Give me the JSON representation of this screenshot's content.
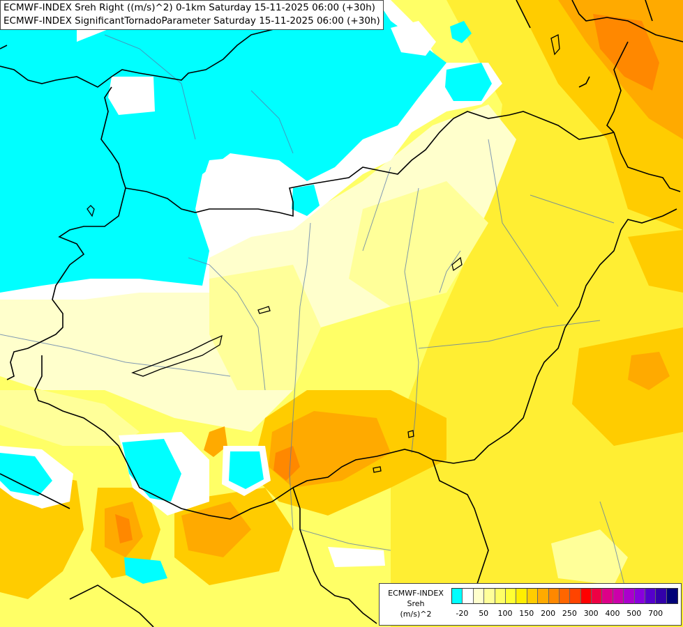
{
  "header": {
    "line1": "ECMWF-INDEX Sreh Right ((m/s)^2) 0-1km Saturday 15-11-2025 06:00 (+30h)",
    "line2": "ECMWF-INDEX SignificantTornadoParameter Saturday 15-11-2025 06:00 (+30h)"
  },
  "legend": {
    "title_line1": "ECMWF-INDEX",
    "title_line2": "Sreh",
    "title_line3": "(m/s)^2",
    "colors": [
      "#00ffff",
      "#ffffff",
      "#ffffcc",
      "#ffff99",
      "#ffff66",
      "#ffff33",
      "#ffee00",
      "#ffcc00",
      "#ffaa00",
      "#ff8800",
      "#ff6600",
      "#ff4400",
      "#ff0000",
      "#ee0044",
      "#dd0088",
      "#cc00aa",
      "#aa00cc",
      "#8800dd",
      "#5500cc",
      "#3300aa",
      "#000077"
    ],
    "ticks": [
      "-20",
      "50",
      "100",
      "150",
      "200",
      "250",
      "300",
      "400",
      "500",
      "700"
    ]
  },
  "colors": {
    "cyan": "#00ffff",
    "pale_yellow": "#ffffcc",
    "light_yellow": "#ffff99",
    "yellow": "#ffee33",
    "gold": "#ffcc00",
    "orange": "#ffaa00",
    "dark_orange": "#ff8800",
    "border": "#000000",
    "river": "#5577aa"
  }
}
